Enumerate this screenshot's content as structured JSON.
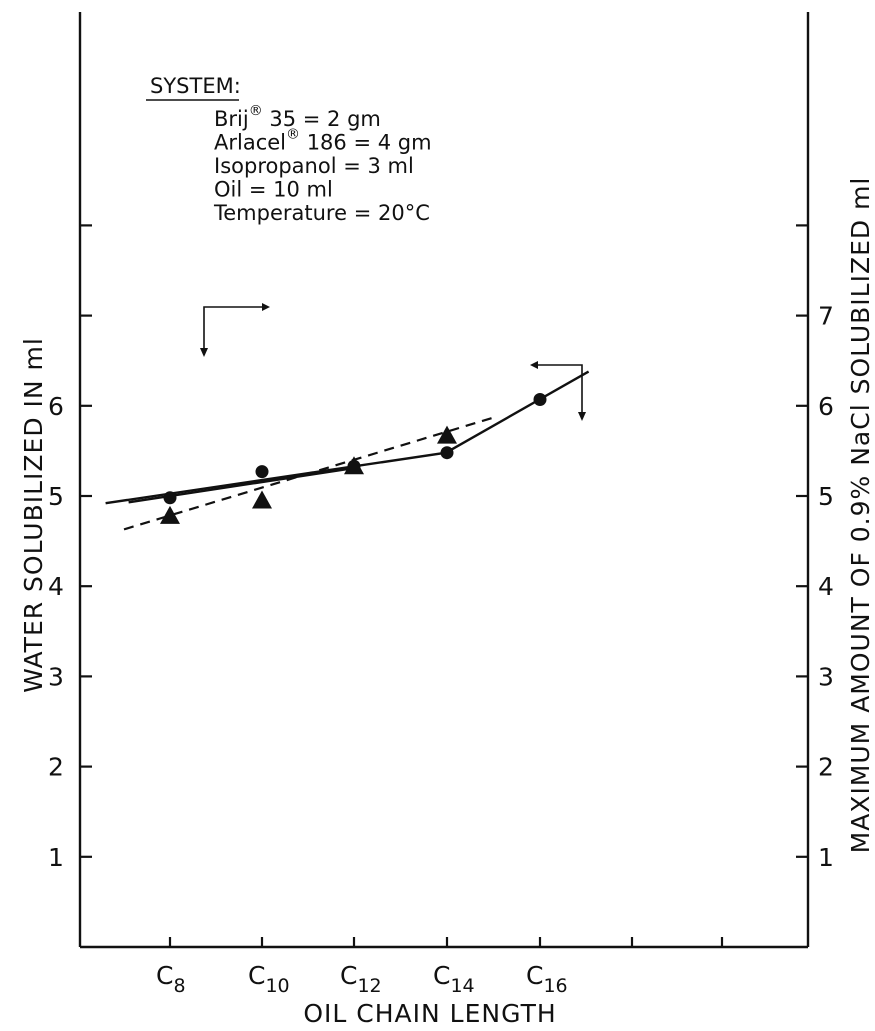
{
  "chart_data": {
    "type": "line",
    "categories": [
      "C8",
      "C10",
      "C12",
      "C14",
      "C16"
    ],
    "x_tick_labels": [
      {
        "base": "C",
        "sub": "8"
      },
      {
        "base": "C",
        "sub": "10"
      },
      {
        "base": "C",
        "sub": "12"
      },
      {
        "base": "C",
        "sub": "14"
      },
      {
        "base": "C",
        "sub": "16"
      }
    ],
    "xlabel": "OIL CHAIN LENGTH",
    "ylabel_left": "WATER SOLUBILIZED IN ml",
    "ylabel_right": "MAXIMUM AMOUNT OF 0.9% NaCl SOLUBILIZED ml",
    "ylim": [
      0,
      9.5
    ],
    "yticks_left_labeled": [
      1,
      2,
      3,
      4,
      5,
      6
    ],
    "yticks_left_unlabeled": [
      7,
      8
    ],
    "yticks_right_labeled": [
      1,
      2,
      3,
      4,
      5,
      6,
      7
    ],
    "yticks_right_unlabeled": [
      8
    ],
    "series": [
      {
        "marker": "circle",
        "axis": "left",
        "line": "solid",
        "points": [
          {
            "x": "C8",
            "y": 4.98
          },
          {
            "x": "C10",
            "y": 5.27
          },
          {
            "x": "C12",
            "y": 5.33
          },
          {
            "x": "C14",
            "y": 5.48
          },
          {
            "x": "C16",
            "y": 6.07
          }
        ]
      },
      {
        "marker": "triangle",
        "axis": "right",
        "line": "dashed",
        "points": [
          {
            "x": "C8",
            "y": 4.78
          },
          {
            "x": "C10",
            "y": 4.95
          },
          {
            "x": "C12",
            "y": 5.33
          },
          {
            "x": "C14",
            "y": 5.67
          }
        ]
      }
    ],
    "annotation": {
      "heading": "SYSTEM:",
      "lines": [
        {
          "pre": "Brij",
          "sup": "®",
          "post": " 35 = 2 gm"
        },
        {
          "pre": "Arlacel",
          "sup": "®",
          "post": " 186 = 4 gm"
        },
        {
          "pre": "Isopropanol = 3 ml",
          "sup": "",
          "post": ""
        },
        {
          "pre": "Oil = 10 ml",
          "sup": "",
          "post": ""
        },
        {
          "pre": "Temperature = 20°C",
          "sup": "",
          "post": ""
        }
      ]
    },
    "grid": false
  }
}
